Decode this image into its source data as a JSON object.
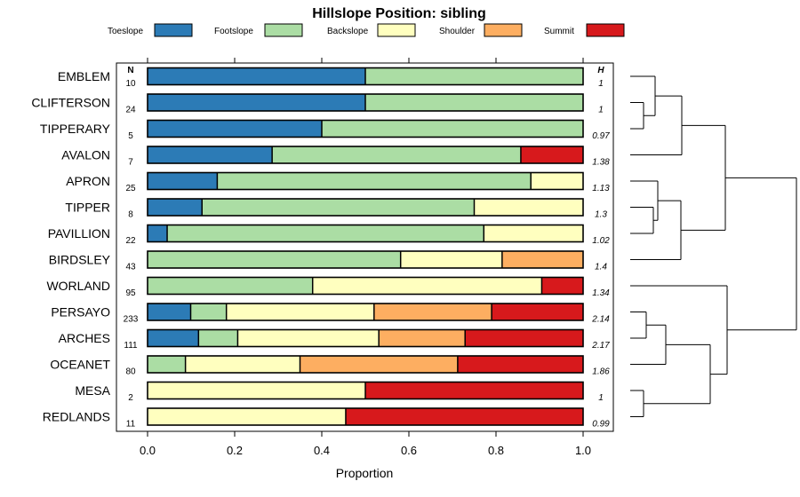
{
  "chart_data": {
    "type": "bar",
    "stacked": true,
    "orientation": "horizontal",
    "title": "Hillslope Position: sibling",
    "xlabel": "Proportion",
    "xlim": [
      0,
      1
    ],
    "xticks": [
      "0.0",
      "0.2",
      "0.4",
      "0.6",
      "0.8",
      "1.0"
    ],
    "n_header": "N",
    "h_header": "H",
    "legend": [
      {
        "name": "Toeslope",
        "color": "#2C7BB6"
      },
      {
        "name": "Footslope",
        "color": "#ABDDA4"
      },
      {
        "name": "Backslope",
        "color": "#FFFFBF"
      },
      {
        "name": "Shoulder",
        "color": "#FDAE61"
      },
      {
        "name": "Summit",
        "color": "#D7191C"
      }
    ],
    "rows": [
      {
        "name": "EMBLEM",
        "n": "10",
        "h": "1",
        "values": [
          0.5,
          0.5,
          0,
          0,
          0
        ]
      },
      {
        "name": "CLIFTERSON",
        "n": "24",
        "h": "1",
        "values": [
          0.5,
          0.5,
          0,
          0,
          0
        ]
      },
      {
        "name": "TIPPERARY",
        "n": "5",
        "h": "0.97",
        "values": [
          0.4,
          0.6,
          0,
          0,
          0
        ]
      },
      {
        "name": "AVALON",
        "n": "7",
        "h": "1.38",
        "values": [
          0.286,
          0.571,
          0,
          0,
          0.143
        ]
      },
      {
        "name": "APRON",
        "n": "25",
        "h": "1.13",
        "values": [
          0.16,
          0.72,
          0.12,
          0,
          0
        ]
      },
      {
        "name": "TIPPER",
        "n": "8",
        "h": "1.3",
        "values": [
          0.125,
          0.625,
          0.25,
          0,
          0
        ]
      },
      {
        "name": "PAVILLION",
        "n": "22",
        "h": "1.02",
        "values": [
          0.045,
          0.727,
          0.228,
          0,
          0
        ]
      },
      {
        "name": "BIRDSLEY",
        "n": "43",
        "h": "1.4",
        "values": [
          0,
          0.581,
          0.233,
          0.186,
          0
        ]
      },
      {
        "name": "WORLAND",
        "n": "95",
        "h": "1.34",
        "values": [
          0,
          0.379,
          0.526,
          0,
          0.095
        ]
      },
      {
        "name": "PERSAYO",
        "n": "233",
        "h": "2.14",
        "values": [
          0.099,
          0.082,
          0.339,
          0.27,
          0.21
        ]
      },
      {
        "name": "ARCHES",
        "n": "111",
        "h": "2.17",
        "values": [
          0.117,
          0.09,
          0.324,
          0.198,
          0.271
        ]
      },
      {
        "name": "OCEANET",
        "n": "80",
        "h": "1.86",
        "values": [
          0,
          0.087,
          0.263,
          0.362,
          0.288
        ]
      },
      {
        "name": "MESA",
        "n": "2",
        "h": "1",
        "values": [
          0,
          0,
          0.5,
          0,
          0.5
        ]
      },
      {
        "name": "REDLANDS",
        "n": "11",
        "h": "0.99",
        "values": [
          0,
          0,
          0.455,
          0,
          0.545
        ]
      }
    ]
  }
}
